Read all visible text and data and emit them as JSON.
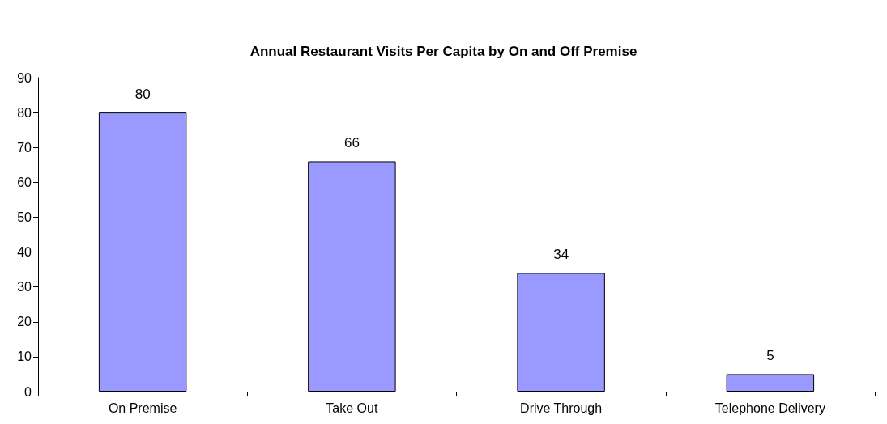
{
  "chart_data": {
    "type": "bar",
    "title": "Annual Restaurant Visits Per Capita by On and Off Premise",
    "categories": [
      "On Premise",
      "Take Out",
      "Drive Through",
      "Telephone Delivery"
    ],
    "values": [
      80,
      66,
      34,
      5
    ],
    "color": "#9999ff",
    "ylim": [
      0,
      90
    ],
    "yticks": [
      0,
      10,
      20,
      30,
      40,
      50,
      60,
      70,
      80,
      90
    ],
    "grid": false,
    "data_labels": true
  }
}
